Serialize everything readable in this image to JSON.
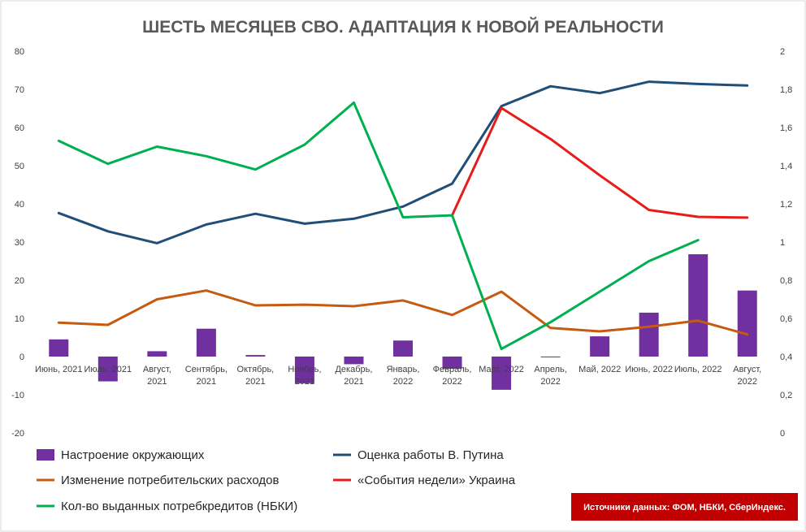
{
  "chart_data": {
    "type": "bar+line",
    "title": "ШЕСТЬ МЕСЯЦЕВ СВО. АДАПТАЦИЯ К НОВОЙ РЕАЛЬНОСТИ",
    "categories": [
      [
        "Июнь, 2021"
      ],
      [
        "Июль, 2021"
      ],
      [
        "Август,",
        "2021"
      ],
      [
        "Сентябрь,",
        "2021"
      ],
      [
        "Октябрь,",
        "2021"
      ],
      [
        "Ноябрь,",
        "2021"
      ],
      [
        "Декабрь,",
        "2021"
      ],
      [
        "Январь,",
        "2022"
      ],
      [
        "Февраль,",
        "2022"
      ],
      [
        "Март, 2022"
      ],
      [
        "Апрель,",
        "2022"
      ],
      [
        "Май, 2022"
      ],
      [
        "Июнь, 2022"
      ],
      [
        "Июль, 2022"
      ],
      [
        "Август,",
        "2022"
      ]
    ],
    "y_left": {
      "min": -20,
      "max": 80,
      "step": 10,
      "ticks": [
        "-20",
        "-10",
        "0",
        "10",
        "20",
        "30",
        "40",
        "50",
        "60",
        "70",
        "80"
      ]
    },
    "y_right": {
      "min": 0,
      "max": 2,
      "step": 0.2,
      "ticks": [
        "0",
        "0,2",
        "0,4",
        "0,6",
        "0,8",
        "1",
        "1,2",
        "1,4",
        "1,6",
        "1,8",
        "2"
      ]
    },
    "grid": false,
    "legend_position": "bottom",
    "series": [
      {
        "name": "Настроение окружающих",
        "type": "bar",
        "axis": "left",
        "color": "#7030A0",
        "values": [
          4.5,
          -6.5,
          1.4,
          7.3,
          0.4,
          -7.0,
          -2.0,
          4.2,
          -3.2,
          -8.7,
          -0.2,
          5.3,
          11.5,
          26.8,
          17.3
        ]
      },
      {
        "name": "Оценка работы В. Путина",
        "type": "line",
        "axis": "left",
        "color": "#1F4E79",
        "values": [
          37.6,
          32.8,
          29.7,
          34.6,
          37.4,
          34.8,
          36.1,
          39.3,
          45.3,
          65.6,
          70.8,
          69.0,
          72.0,
          71.4,
          71.0
        ]
      },
      {
        "name": "Изменение потребительских расходов",
        "type": "line",
        "axis": "left",
        "color": "#C55A11",
        "values": [
          8.9,
          8.3,
          15.0,
          17.3,
          13.4,
          13.6,
          13.2,
          14.7,
          10.9,
          17.0,
          7.5,
          6.6,
          7.8,
          9.4,
          5.8
        ]
      },
      {
        "name": "«События недели» Украина",
        "type": "line",
        "axis": "left",
        "color": "#E81B1B",
        "values": [
          null,
          null,
          null,
          null,
          null,
          null,
          null,
          null,
          37.0,
          65.1,
          57.0,
          47.5,
          38.4,
          36.6,
          36.4
        ]
      },
      {
        "name": "Кол-во выданных потребкредитов (НБКИ)",
        "type": "line",
        "axis": "right",
        "color": "#00B050",
        "values": [
          1.53,
          1.41,
          1.5,
          1.45,
          1.38,
          1.51,
          1.73,
          1.13,
          1.14,
          0.44,
          0.58,
          0.74,
          0.9,
          1.01,
          null
        ]
      }
    ]
  },
  "source_note": "Источники данных: ФОМ, НБКИ, СберИндекс.",
  "source_note_color": "#C00000"
}
